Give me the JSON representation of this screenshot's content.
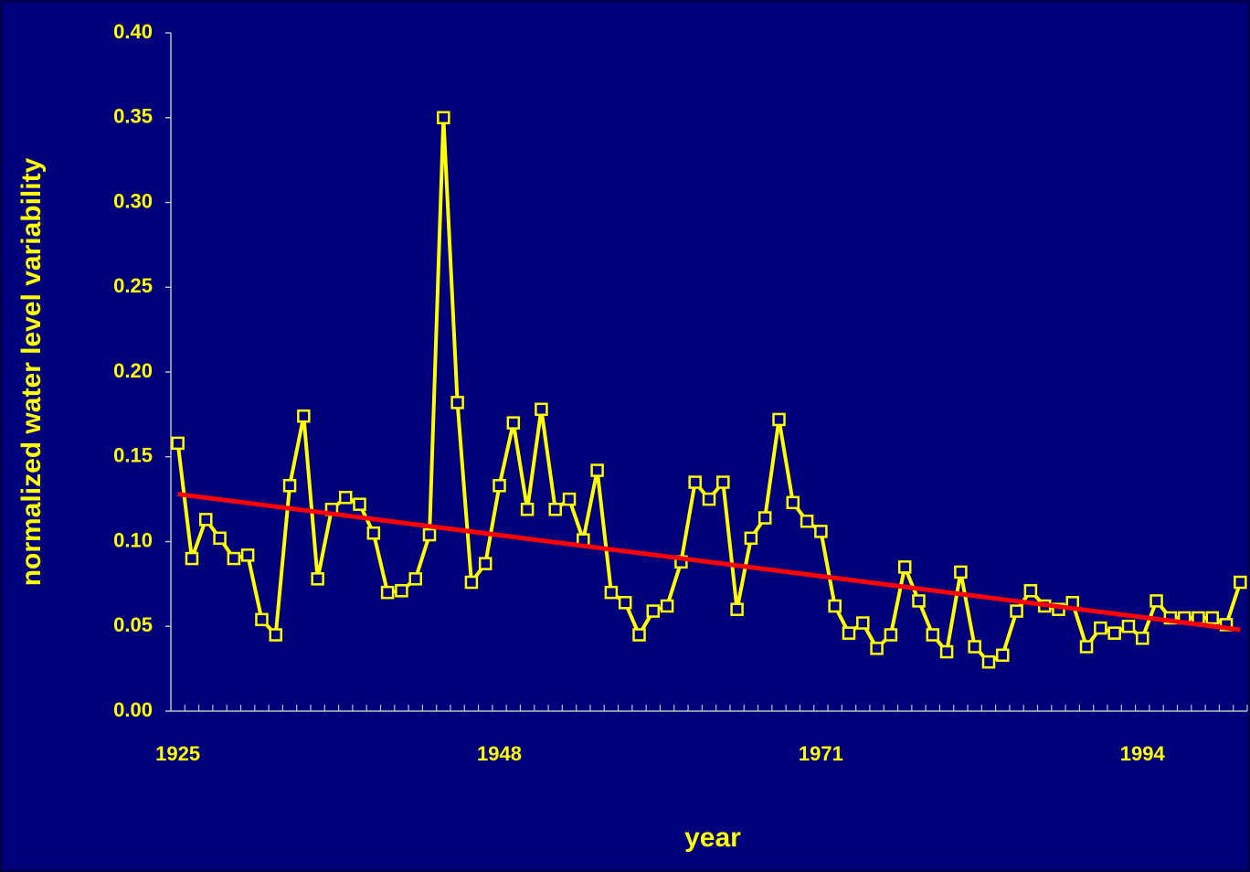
{
  "chart_data": {
    "type": "line",
    "x_label": "year",
    "y_label": "normalized water level variability",
    "x": [
      1925,
      1926,
      1927,
      1928,
      1929,
      1930,
      1931,
      1932,
      1933,
      1934,
      1935,
      1936,
      1937,
      1938,
      1939,
      1940,
      1941,
      1942,
      1943,
      1944,
      1945,
      1946,
      1947,
      1948,
      1949,
      1950,
      1951,
      1952,
      1953,
      1954,
      1955,
      1956,
      1957,
      1958,
      1959,
      1960,
      1961,
      1962,
      1963,
      1964,
      1965,
      1966,
      1967,
      1968,
      1969,
      1970,
      1971,
      1972,
      1973,
      1974,
      1975,
      1976,
      1977,
      1978,
      1979,
      1980,
      1981,
      1982,
      1983,
      1984,
      1985,
      1986,
      1987,
      1988,
      1989,
      1990,
      1991,
      1992,
      1993,
      1994,
      1995,
      1996,
      1997,
      1998,
      1999,
      2000,
      2001
    ],
    "series": [
      {
        "color": "#ffff00",
        "values": [
          0.158,
          0.09,
          0.113,
          0.102,
          0.09,
          0.092,
          0.054,
          0.045,
          0.133,
          0.174,
          0.078,
          0.119,
          0.126,
          0.122,
          0.105,
          0.07,
          0.071,
          0.078,
          0.104,
          0.35,
          0.182,
          0.076,
          0.087,
          0.133,
          0.17,
          0.119,
          0.178,
          0.119,
          0.125,
          0.101,
          0.142,
          0.07,
          0.064,
          0.045,
          0.059,
          0.062,
          0.088,
          0.135,
          0.125,
          0.135,
          0.06,
          0.102,
          0.114,
          0.172,
          0.123,
          0.112,
          0.106,
          0.062,
          0.046,
          0.052,
          0.037,
          0.045,
          0.085,
          0.065,
          0.045,
          0.035,
          0.082,
          0.038,
          0.029,
          0.033,
          0.059,
          0.071,
          0.062,
          0.06,
          0.064,
          0.038,
          0.049,
          0.046,
          0.05,
          0.043,
          0.065,
          0.055,
          0.055,
          0.055,
          0.055,
          0.051,
          0.076
        ]
      },
      {
        "color": "#ff0000",
        "x": [
          1925,
          2001
        ],
        "values": [
          0.128,
          0.048
        ]
      }
    ],
    "xlim": [
      1924.5,
      2001.5
    ],
    "xticks": [
      1925,
      1948,
      1971,
      1994
    ],
    "ylim": [
      0,
      0.4
    ],
    "yticks": [
      {
        "value": 0,
        "label": "0.00"
      },
      {
        "value": 0.05,
        "label": "0.05"
      },
      {
        "value": 0.1,
        "label": "0.10"
      },
      {
        "value": 0.15,
        "label": "0.15"
      },
      {
        "value": 0.2,
        "label": "0.20"
      },
      {
        "value": 0.25,
        "label": "0.25"
      },
      {
        "value": 0.3,
        "label": "0.30"
      },
      {
        "value": 0.35,
        "label": "0.35"
      },
      {
        "value": 0.4,
        "label": "0.40"
      }
    ],
    "grid": false
  }
}
